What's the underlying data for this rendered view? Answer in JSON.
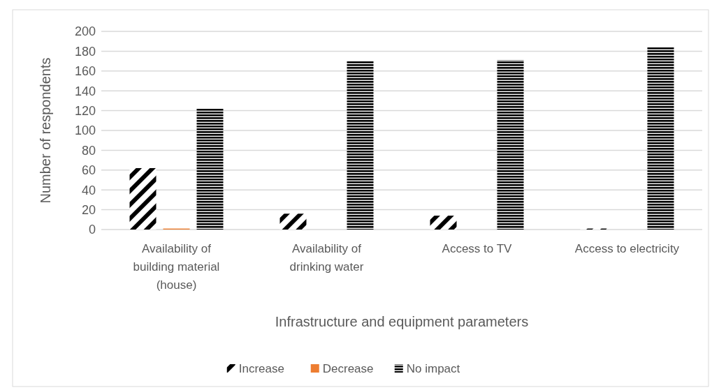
{
  "chart_data": {
    "type": "bar",
    "xlabel": "Infrastructure and equipment parameters",
    "ylabel": "Number of respondents",
    "categories": [
      "Availability of building material (house)",
      "Availability of drinking water",
      "Access to TV",
      "Access to electricity"
    ],
    "series": [
      {
        "name": "Increase",
        "color": "#000000",
        "values": [
          62,
          16,
          14,
          1
        ]
      },
      {
        "name": "Decrease",
        "color": "#ed7d31",
        "values": [
          1,
          0,
          0,
          0
        ]
      },
      {
        "name": "No impact",
        "color": "#000000",
        "values": [
          122,
          170,
          171,
          184
        ]
      }
    ],
    "ylim": [
      0,
      200
    ],
    "yticks": [
      0,
      20,
      40,
      60,
      80,
      100,
      120,
      140,
      160,
      180,
      200
    ],
    "grid": "y",
    "legend": "bottom"
  }
}
